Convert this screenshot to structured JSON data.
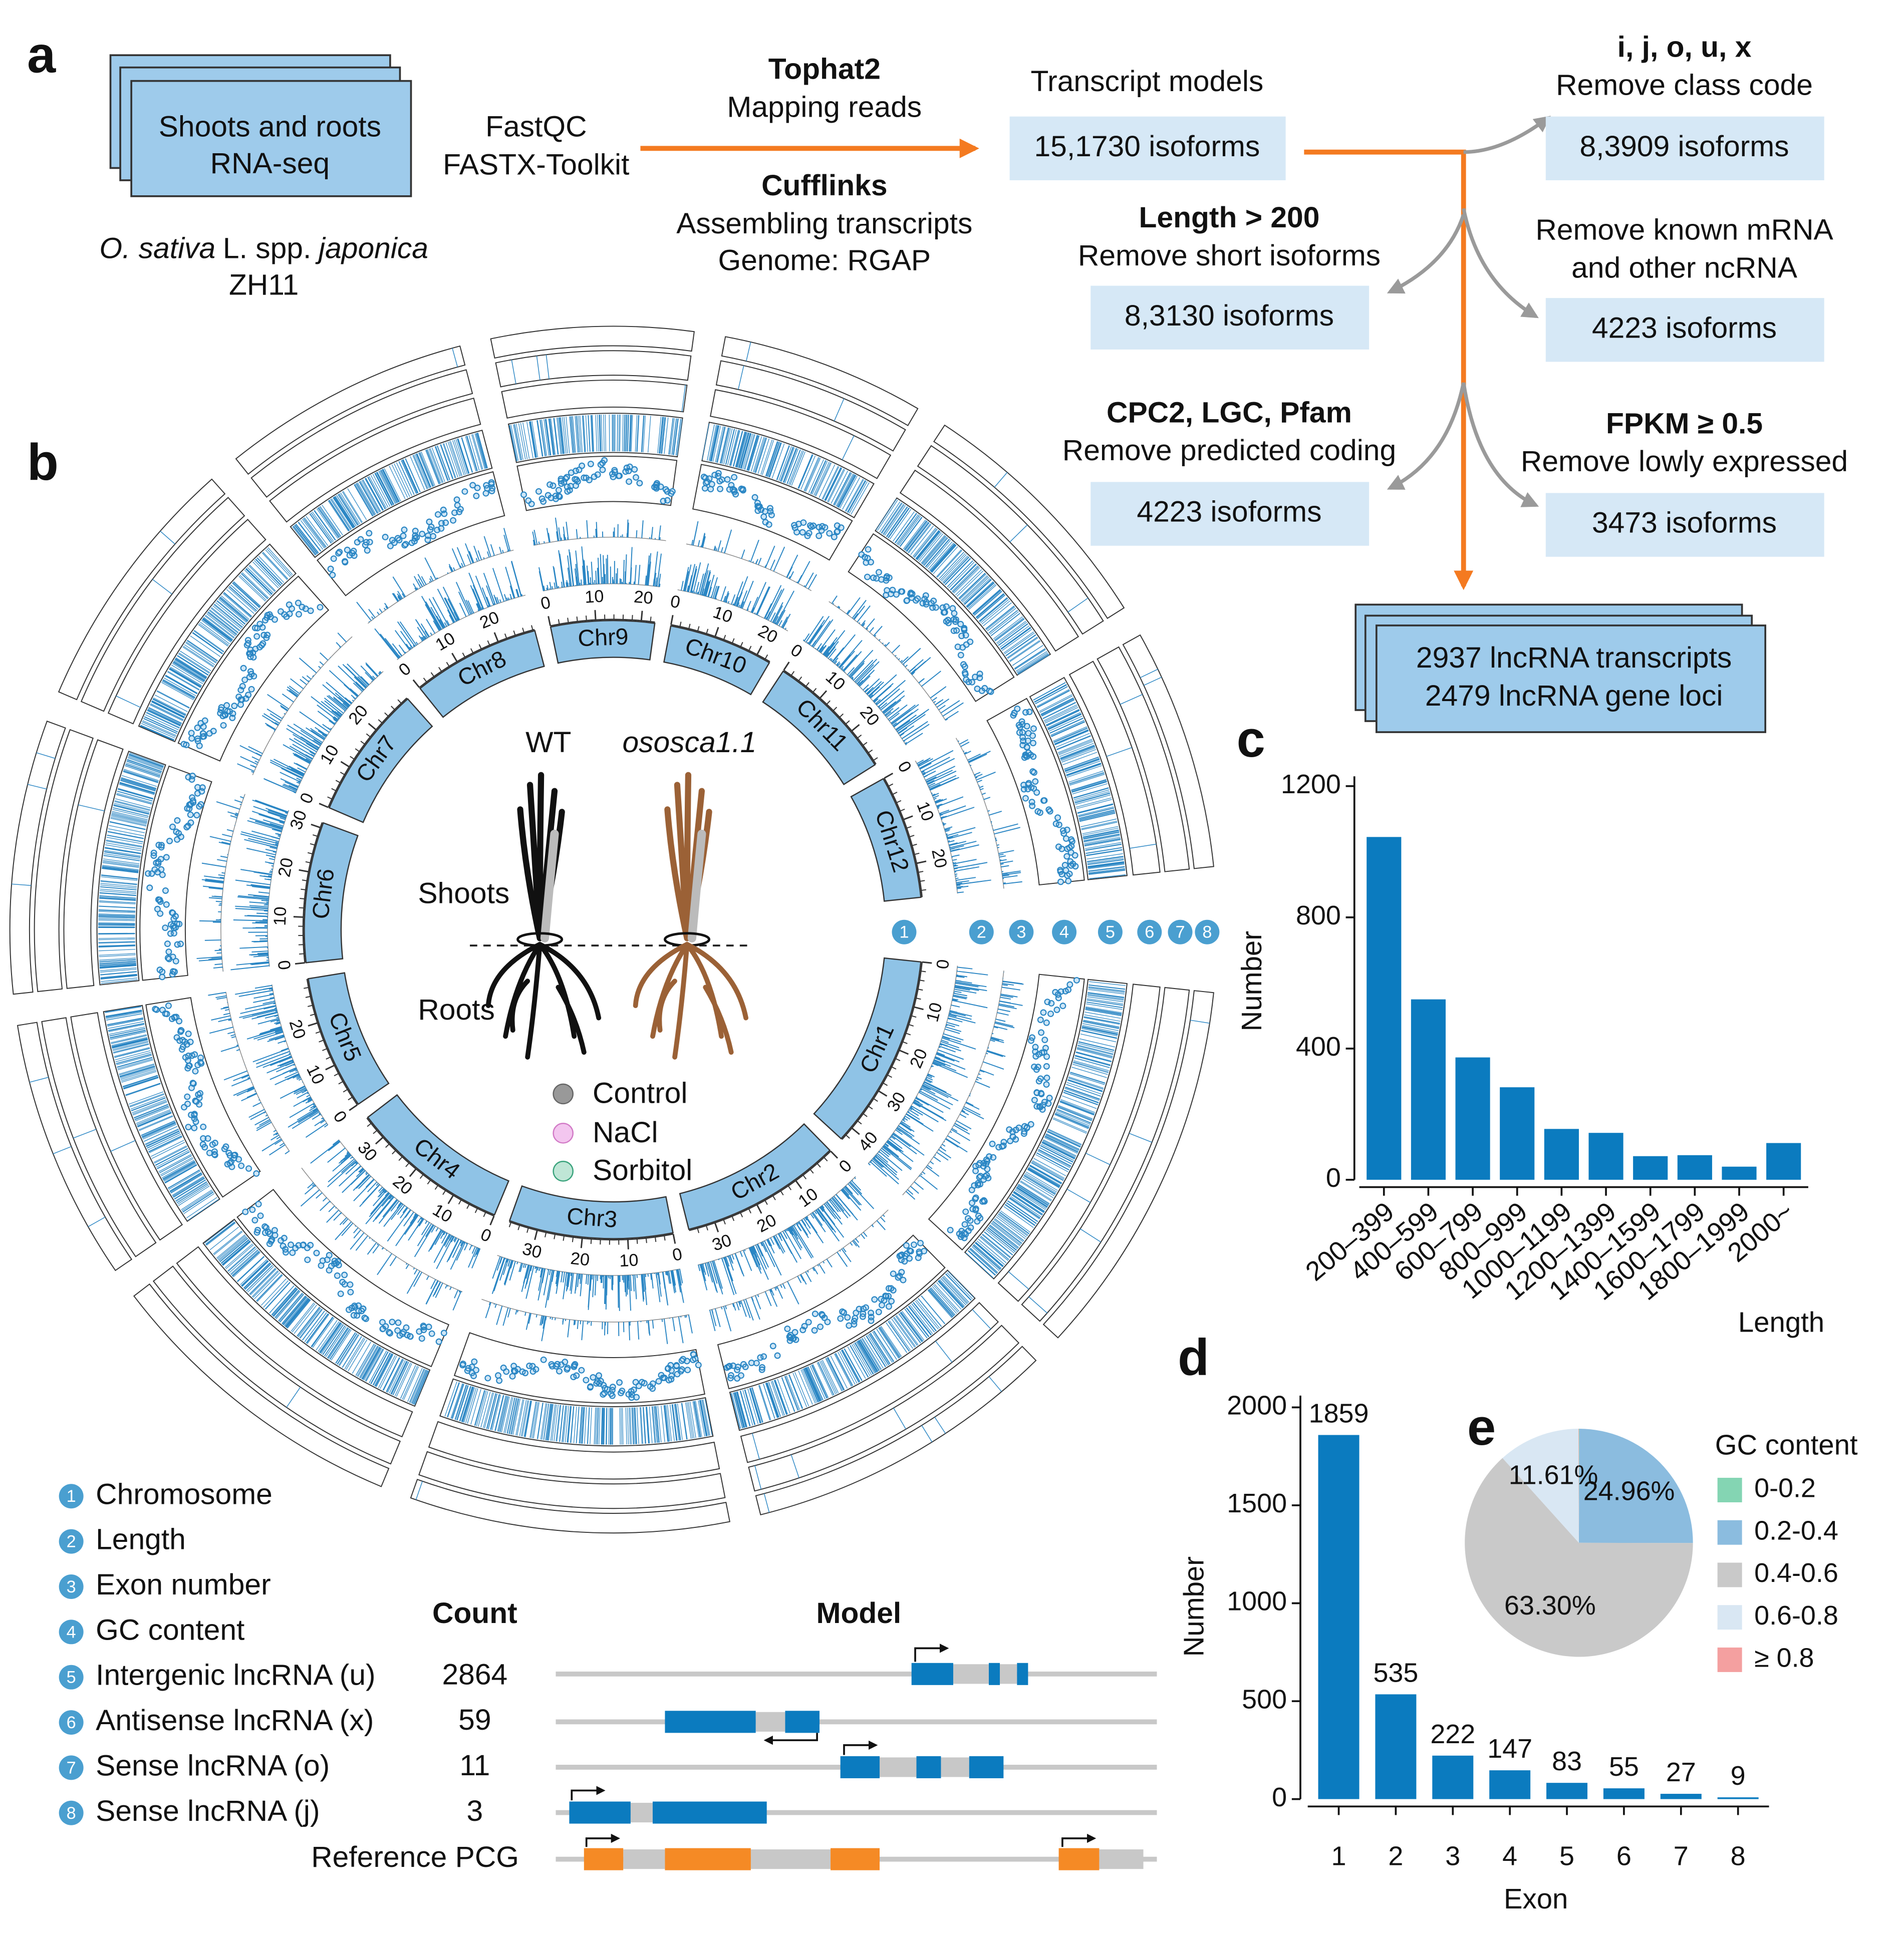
{
  "panel_labels": [
    "a",
    "b",
    "c",
    "d",
    "e"
  ],
  "panel_a": {
    "input_box": [
      "Shoots and roots",
      "RNA-seq"
    ],
    "species": [
      "O. sativa",
      "L. spp.",
      "japonica"
    ],
    "cultivar": "ZH11",
    "qc_tools": [
      "FastQC",
      "FASTX-Toolkit"
    ],
    "mapping": {
      "tool": "Tophat2",
      "step": "Mapping reads"
    },
    "assembly": {
      "tool": "Cufflinks",
      "step": "Assembling transcripts",
      "genome": "Genome: RGAP"
    },
    "transcripts": {
      "label": "Transcript models",
      "result": "15,1730 isoforms"
    },
    "filters": [
      {
        "criterion": "i, j, o, u, x",
        "action": [
          "Remove class code"
        ],
        "result": "8,3909 isoforms"
      },
      {
        "criterion": "Length  >  200",
        "action": [
          "Remove short isoforms"
        ],
        "result": "8,3130 isoforms"
      },
      {
        "action": [
          "Remove known mRNA",
          "and other ncRNA"
        ],
        "result": "4223 isoforms"
      },
      {
        "criterion": "CPC2, LGC, Pfam",
        "action": [
          "Remove predicted coding"
        ],
        "result": "4223 isoforms"
      },
      {
        "criterion": "FPKM ≥ 0.5",
        "action": [
          "Remove lowly expressed"
        ],
        "result": "3473 isoforms"
      }
    ],
    "output": [
      "2937 lncRNA transcripts",
      "2479 lncRNA gene loci"
    ]
  },
  "panel_b": {
    "chromosomes": [
      {
        "name": "Chr1",
        "length": 43.3,
        "ticks": [
          0,
          10,
          20,
          30,
          40
        ]
      },
      {
        "name": "Chr2",
        "length": 35.9,
        "ticks": [
          0,
          10,
          20,
          30
        ]
      },
      {
        "name": "Chr3",
        "length": 36.4,
        "ticks": [
          0,
          10,
          20,
          30
        ]
      },
      {
        "name": "Chr4",
        "length": 35.5,
        "ticks": [
          0,
          10,
          20,
          30
        ]
      },
      {
        "name": "Chr5",
        "length": 29.9,
        "ticks": [
          0,
          10,
          20
        ]
      },
      {
        "name": "Chr6",
        "length": 31.2,
        "ticks": [
          0,
          10,
          20,
          30
        ]
      },
      {
        "name": "Chr7",
        "length": 29.7,
        "ticks": [
          0,
          10,
          20
        ]
      },
      {
        "name": "Chr8",
        "length": 28.4,
        "ticks": [
          0,
          10,
          20
        ]
      },
      {
        "name": "Chr9",
        "length": 23.0,
        "ticks": [
          0,
          10,
          20
        ]
      },
      {
        "name": "Chr10",
        "length": 23.2,
        "ticks": [
          0,
          10,
          20
        ]
      },
      {
        "name": "Chr11",
        "length": 29.0,
        "ticks": [
          0,
          10,
          20
        ]
      },
      {
        "name": "Chr12",
        "length": 27.5,
        "ticks": [
          0,
          10,
          20
        ]
      }
    ],
    "genotypes": [
      "WT",
      "ososca1.1"
    ],
    "tissues": [
      "Shoots",
      "Roots"
    ],
    "treatments": [
      "Control",
      "NaCl",
      "Sorbitol"
    ],
    "track_numbers": [
      "1",
      "2",
      "3",
      "4",
      "5",
      "6",
      "7",
      "8"
    ],
    "tracks": [
      "Chromosome",
      "Length",
      "Exon number",
      "GC content",
      "Intergenic lncRNA (u)",
      "Antisense lncRNA (x)",
      "Sense lncRNA (o)",
      "Sense lncRNA (j)"
    ],
    "count_header": "Count",
    "model_header": "Model",
    "counts": [
      2864,
      59,
      11,
      3
    ],
    "reference": "Reference PCG"
  },
  "chart_data": [
    {
      "type": "bar",
      "categories": [
        "200–399",
        "400–599",
        "600–799",
        "800–999",
        "1000–1199",
        "1200–1399",
        "1400–1599",
        "1600–1799",
        "1800–1999",
        "2000~"
      ],
      "values": [
        1045,
        550,
        373,
        282,
        155,
        143,
        72,
        75,
        40,
        112
      ],
      "color": "#0b7bbf",
      "ylim": [
        0,
        1230
      ],
      "yticks": [
        0,
        400,
        800,
        1200
      ],
      "y_label": "Number",
      "x_label": "Length"
    },
    {
      "type": "bar",
      "categories": [
        "1",
        "2",
        "3",
        "4",
        "5",
        "6",
        "7",
        "8"
      ],
      "values": [
        1859,
        535,
        222,
        147,
        83,
        55,
        27,
        9
      ],
      "color": "#0b7bbf",
      "ylim": [
        0,
        2060
      ],
      "yticks": [
        0,
        500,
        1000,
        1500,
        2000
      ],
      "y_label": "Number",
      "x_label": "Exon",
      "data_labels": true
    },
    {
      "type": "pie",
      "title": "GC content",
      "categories": [
        "0-0.2",
        "0.2-0.4",
        "0.4-0.6",
        "0.6-0.8",
        "≥ 0.8"
      ],
      "values": [
        0.07,
        24.96,
        63.3,
        11.61,
        0.06
      ],
      "value_labels": [
        null,
        "24.96%",
        "63.30%",
        "11.61%",
        null
      ],
      "colors": [
        "#84d5b3",
        "#8bbcdf",
        "#c9c9c9",
        "#d9e7f3",
        "#f4a0a0"
      ]
    }
  ]
}
